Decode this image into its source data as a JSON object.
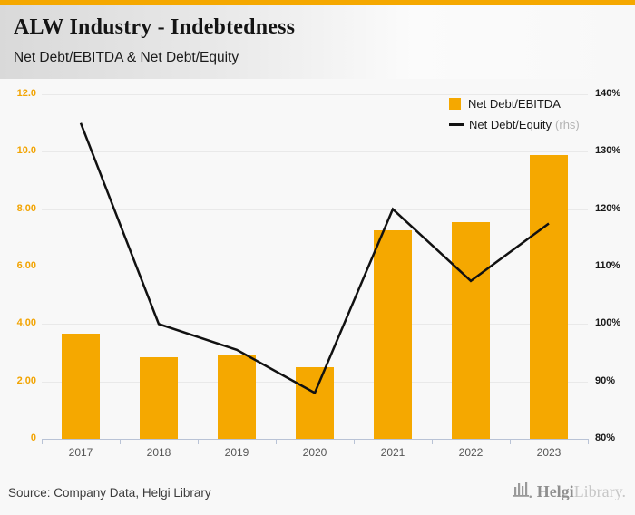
{
  "header": {
    "title": "ALW Industry - Indebtedness",
    "subtitle": "Net Debt/EBITDA & Net Debt/Equity"
  },
  "chart_data": {
    "type": "bar",
    "title": "ALW Industry - Indebtedness",
    "subtitle": "Net Debt/EBITDA & Net Debt/Equity",
    "categories": [
      "2017",
      "2018",
      "2019",
      "2020",
      "2021",
      "2022",
      "2023"
    ],
    "series": [
      {
        "name": "Net Debt/EBITDA",
        "type": "bar",
        "axis": "left",
        "color": "#F5A800",
        "values": [
          3.65,
          2.85,
          2.9,
          2.5,
          7.25,
          7.55,
          9.9
        ]
      },
      {
        "name": "Net Debt/Equity",
        "suffix": "(rhs)",
        "type": "line",
        "axis": "right",
        "color": "#111111",
        "values": [
          135,
          100,
          95.5,
          88,
          120,
          107.5,
          117.5
        ]
      }
    ],
    "left_axis": {
      "min": 0,
      "max": 12,
      "tick_values": [
        12,
        10,
        8,
        6,
        4,
        2,
        0
      ],
      "tick_labels": [
        "12.0",
        "10.0",
        "8.00",
        "6.00",
        "4.00",
        "2.00",
        "0"
      ]
    },
    "right_axis": {
      "min": 80,
      "max": 140,
      "tick_values": [
        140,
        130,
        120,
        110,
        100,
        90,
        80
      ],
      "tick_labels": [
        "140%",
        "130%",
        "120%",
        "110%",
        "100%",
        "90%",
        "80%"
      ]
    },
    "grid": true,
    "legend_position": "top-right"
  },
  "footer": {
    "source": "Source: Company Data, Helgi Library",
    "logo_bold": "Helgi",
    "logo_light": "Library."
  },
  "colors": {
    "accent_orange": "#F5A800",
    "line_black": "#111111",
    "left_axis_label": "#F2A403",
    "right_axis_label": "#1a1a1a",
    "axis_line": "#b9c3d6",
    "gridline": "#e9e9e9"
  }
}
